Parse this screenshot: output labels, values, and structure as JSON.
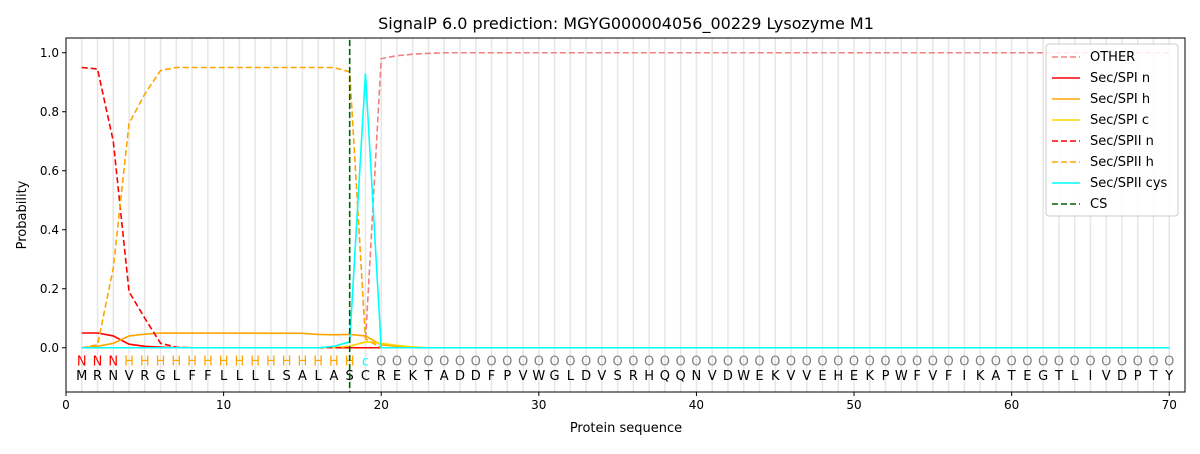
{
  "chart_data": {
    "type": "line",
    "title": "SignalP 6.0 prediction: MGYG000004056_00229 Lysozyme M1",
    "xlabel": "Protein sequence",
    "ylabel": "Probability",
    "xlim": [
      0,
      71
    ],
    "ylim": [
      -0.15,
      1.05
    ],
    "xticks": [
      0,
      10,
      20,
      30,
      40,
      50,
      60,
      70
    ],
    "yticks": [
      0.0,
      0.2,
      0.4,
      0.6,
      0.8,
      1.0
    ],
    "legend_position": "top-right",
    "sequence": [
      "M",
      "R",
      "N",
      "V",
      "R",
      "G",
      "L",
      "F",
      "F",
      "L",
      "L",
      "L",
      "L",
      "S",
      "A",
      "L",
      "A",
      "S",
      "C",
      "R",
      "E",
      "K",
      "T",
      "A",
      "D",
      "D",
      "F",
      "P",
      "V",
      "W",
      "G",
      "L",
      "D",
      "V",
      "S",
      "R",
      "H",
      "Q",
      "Q",
      "N",
      "V",
      "D",
      "W",
      "E",
      "K",
      "V",
      "V",
      "E",
      "H",
      "E",
      "K",
      "P",
      "W",
      "F",
      "V",
      "F",
      "I",
      "K",
      "A",
      "T",
      "E",
      "G",
      "T",
      "L",
      "I",
      "V",
      "D",
      "P",
      "T",
      "Y"
    ],
    "labels": [
      "N",
      "N",
      "N",
      "H",
      "H",
      "H",
      "H",
      "H",
      "H",
      "H",
      "H",
      "H",
      "H",
      "H",
      "H",
      "H",
      "H",
      "H",
      "c",
      "O",
      "O",
      "O",
      "O",
      "O",
      "O",
      "O",
      "O",
      "O",
      "O",
      "O",
      "O",
      "O",
      "O",
      "O",
      "O",
      "O",
      "O",
      "O",
      "O",
      "O",
      "O",
      "O",
      "O",
      "O",
      "O",
      "O",
      "O",
      "O",
      "O",
      "O",
      "O",
      "O",
      "O",
      "O",
      "O",
      "O",
      "O",
      "O",
      "O",
      "O",
      "O",
      "O",
      "O",
      "O",
      "O",
      "O",
      "O",
      "O",
      "O",
      "O"
    ],
    "label_colors": {
      "N": "#ff0000",
      "H": "#ffa500",
      "c": "#00ffff",
      "O": "#808080"
    },
    "cs_position": 18,
    "series": [
      {
        "name": "OTHER",
        "color": "#f08080",
        "dash": true,
        "points": [
          [
            1,
            0
          ],
          [
            17,
            0
          ],
          [
            18,
            0.005
          ],
          [
            19,
            0.02
          ],
          [
            20,
            0.98
          ],
          [
            21,
            0.99
          ],
          [
            22,
            0.995
          ],
          [
            23,
            0.998
          ],
          [
            24,
            1
          ],
          [
            70,
            1
          ]
        ]
      },
      {
        "name": "Sec/SPI n",
        "color": "#ff0000",
        "dash": false,
        "points": [
          [
            1,
            0.05
          ],
          [
            2,
            0.05
          ],
          [
            3,
            0.04
          ],
          [
            4,
            0.012
          ],
          [
            5,
            0.005
          ],
          [
            6,
            0.002
          ],
          [
            7,
            0
          ],
          [
            70,
            0
          ]
        ]
      },
      {
        "name": "Sec/SPI h",
        "color": "#ffa500",
        "dash": false,
        "points": [
          [
            1,
            0
          ],
          [
            2,
            0.005
          ],
          [
            3,
            0.015
          ],
          [
            4,
            0.04
          ],
          [
            5,
            0.046
          ],
          [
            6,
            0.05
          ],
          [
            15,
            0.049
          ],
          [
            16,
            0.045
          ],
          [
            17,
            0.044
          ],
          [
            18,
            0.045
          ],
          [
            19,
            0.04
          ],
          [
            20,
            0.01
          ],
          [
            21,
            0.005
          ],
          [
            22,
            0
          ],
          [
            70,
            0
          ]
        ]
      },
      {
        "name": "Sec/SPI c",
        "color": "#ffd700",
        "dash": false,
        "points": [
          [
            1,
            0
          ],
          [
            17,
            0
          ],
          [
            18,
            0.005
          ],
          [
            19,
            0.02
          ],
          [
            20,
            0.015
          ],
          [
            21,
            0.008
          ],
          [
            22,
            0.003
          ],
          [
            23,
            0
          ],
          [
            70,
            0
          ]
        ]
      },
      {
        "name": "Sec/SPII n",
        "color": "#ff0000",
        "dash": true,
        "points": [
          [
            1,
            0.95
          ],
          [
            2,
            0.945
          ],
          [
            3,
            0.7
          ],
          [
            4,
            0.19
          ],
          [
            5,
            0.1
          ],
          [
            6,
            0.015
          ],
          [
            7,
            0.002
          ],
          [
            8,
            0
          ],
          [
            70,
            0
          ]
        ]
      },
      {
        "name": "Sec/SPII h",
        "color": "#ffa500",
        "dash": true,
        "points": [
          [
            1,
            0
          ],
          [
            2,
            0.01
          ],
          [
            3,
            0.27
          ],
          [
            4,
            0.76
          ],
          [
            5,
            0.86
          ],
          [
            6,
            0.94
          ],
          [
            7,
            0.95
          ],
          [
            17,
            0.95
          ],
          [
            18,
            0.935
          ],
          [
            19,
            0.03
          ],
          [
            20,
            0
          ],
          [
            70,
            0
          ]
        ]
      },
      {
        "name": "Sec/SPII cys",
        "color": "#00ffff",
        "dash": false,
        "points": [
          [
            1,
            0
          ],
          [
            16,
            0
          ],
          [
            17,
            0.005
          ],
          [
            18,
            0.02
          ],
          [
            19,
            0.93
          ],
          [
            20,
            0.0
          ],
          [
            70,
            0
          ]
        ]
      },
      {
        "name": "CS",
        "color": "#006400",
        "dash": true,
        "points": []
      }
    ]
  }
}
